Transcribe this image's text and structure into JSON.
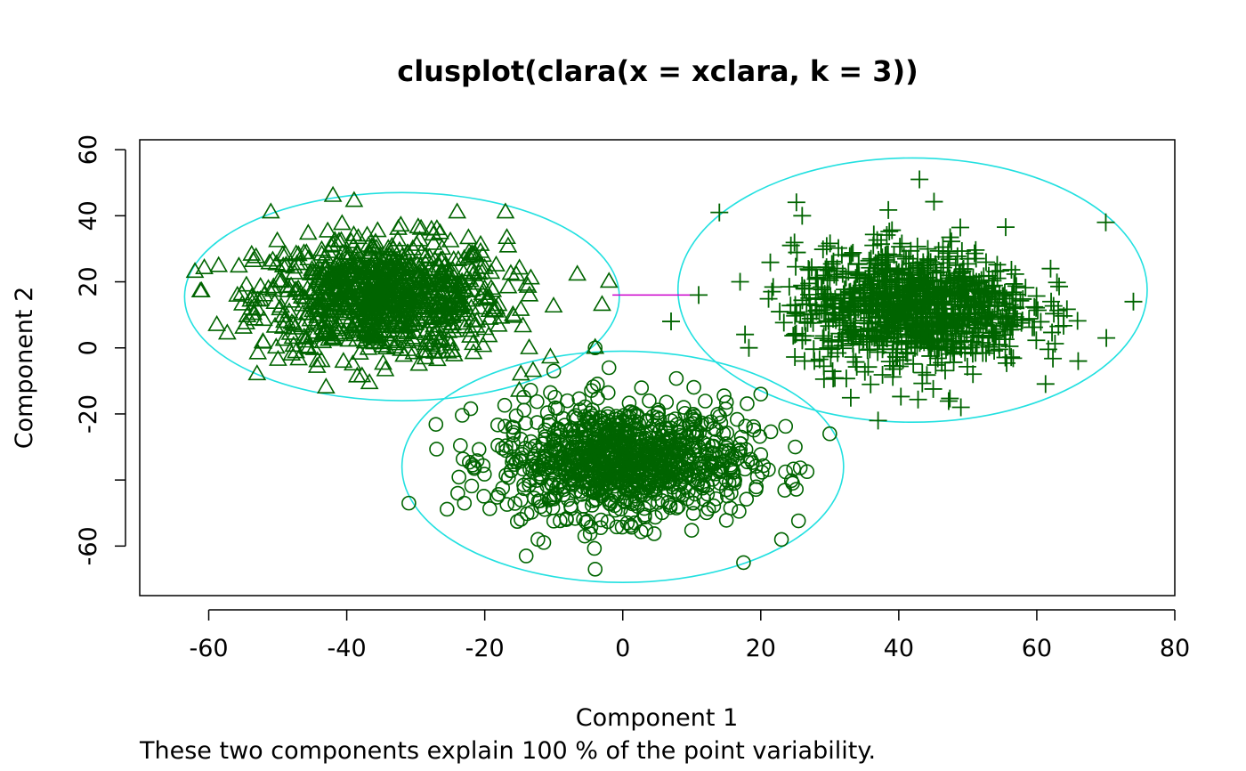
{
  "chart_data": {
    "type": "scatter",
    "title": "clusplot(clara(x = xclara, k = 3))",
    "xlabel": "Component 1",
    "ylabel": "Component 2",
    "subtitle": "These two components explain 100 % of the point variability.",
    "xlim": [
      -70,
      80
    ],
    "ylim": [
      -75,
      63
    ],
    "x_ticks": [
      -60,
      -40,
      -20,
      0,
      20,
      40,
      60,
      80
    ],
    "y_ticks": [
      -60,
      -40,
      -20,
      0,
      20,
      40,
      60
    ],
    "x_tick_labels": [
      "-60",
      "-40",
      "-20",
      "0",
      "20",
      "40",
      "60",
      "80"
    ],
    "y_tick_labels": [
      "-60",
      "",
      "-20",
      "0",
      "20",
      "40",
      "60"
    ],
    "grid": false,
    "point_color": "#006400",
    "ellipse_color": "#22E0E0",
    "line_color": "#CC00CC",
    "clusters": [
      {
        "marker": "triangle",
        "center": [
          -35,
          15
        ],
        "spread": [
          9,
          9
        ],
        "count": 900,
        "ellipse": {
          "center": [
            -32,
            15.5
          ],
          "semi_axes": [
            31.5,
            31.5
          ],
          "angle": 0
        },
        "outliers": [
          [
            -62,
            23
          ],
          [
            -42,
            46
          ],
          [
            -51,
            41
          ],
          [
            -24,
            41
          ],
          [
            -17,
            41
          ],
          [
            -53,
            -8
          ],
          [
            -43,
            -12
          ],
          [
            -13,
            -7
          ],
          [
            -15,
            -13
          ],
          [
            -4,
            0
          ],
          [
            -2,
            20
          ],
          [
            -3,
            13
          ]
        ]
      },
      {
        "marker": "circle",
        "center": [
          0,
          -34
        ],
        "spread": [
          9,
          8.5
        ],
        "count": 1000,
        "ellipse": {
          "center": [
            0,
            -36
          ],
          "semi_axes": [
            32,
            35
          ],
          "angle": 0
        },
        "outliers": [
          [
            -31,
            -47
          ],
          [
            -4,
            -67
          ],
          [
            17.5,
            -65
          ],
          [
            23,
            -58
          ],
          [
            -14,
            -63
          ],
          [
            -2,
            -6
          ],
          [
            -4,
            0
          ],
          [
            30,
            -26
          ],
          [
            25,
            -30
          ],
          [
            20,
            -14
          ],
          [
            -10,
            -7
          ]
        ]
      },
      {
        "marker": "plus",
        "center": [
          42,
          12
        ],
        "spread": [
          8.5,
          9
        ],
        "count": 1000,
        "ellipse": {
          "center": [
            42,
            17.5
          ],
          "semi_axes": [
            34,
            40
          ],
          "angle": 0
        },
        "outliers": [
          [
            14,
            41
          ],
          [
            43,
            51
          ],
          [
            70,
            38
          ],
          [
            74,
            14
          ],
          [
            7,
            8
          ],
          [
            11,
            16
          ],
          [
            37,
            -22
          ],
          [
            49,
            -18
          ],
          [
            26,
            40
          ],
          [
            66,
            -4
          ],
          [
            62,
            24
          ]
        ]
      }
    ],
    "connecting_line": {
      "from": [
        -1.5,
        16
      ],
      "to": [
        10,
        16
      ]
    }
  }
}
